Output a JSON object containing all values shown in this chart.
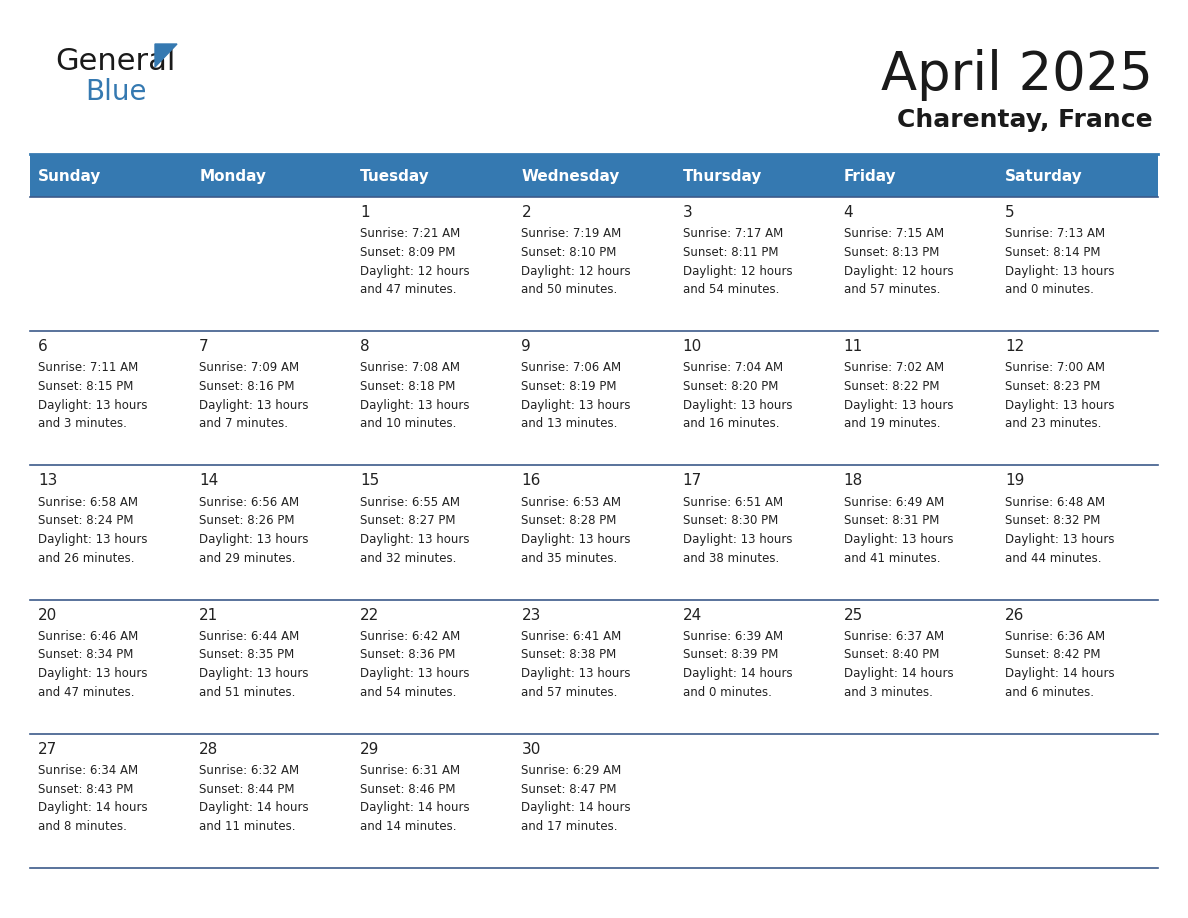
{
  "title": "April 2025",
  "subtitle": "Charentay, France",
  "days_of_week": [
    "Sunday",
    "Monday",
    "Tuesday",
    "Wednesday",
    "Thursday",
    "Friday",
    "Saturday"
  ],
  "header_bg": "#3579B1",
  "header_text_color": "#FFFFFF",
  "row_bg": "#FFFFFF",
  "border_color": "#3C5A8A",
  "text_color": "#222222",
  "calendar_data": [
    [
      null,
      null,
      {
        "day": 1,
        "sunrise": "7:21 AM",
        "sunset": "8:09 PM",
        "daylight": "12 hours and 47 minutes"
      },
      {
        "day": 2,
        "sunrise": "7:19 AM",
        "sunset": "8:10 PM",
        "daylight": "12 hours and 50 minutes"
      },
      {
        "day": 3,
        "sunrise": "7:17 AM",
        "sunset": "8:11 PM",
        "daylight": "12 hours and 54 minutes"
      },
      {
        "day": 4,
        "sunrise": "7:15 AM",
        "sunset": "8:13 PM",
        "daylight": "12 hours and 57 minutes"
      },
      {
        "day": 5,
        "sunrise": "7:13 AM",
        "sunset": "8:14 PM",
        "daylight": "13 hours and 0 minutes"
      }
    ],
    [
      {
        "day": 6,
        "sunrise": "7:11 AM",
        "sunset": "8:15 PM",
        "daylight": "13 hours and 3 minutes"
      },
      {
        "day": 7,
        "sunrise": "7:09 AM",
        "sunset": "8:16 PM",
        "daylight": "13 hours and 7 minutes"
      },
      {
        "day": 8,
        "sunrise": "7:08 AM",
        "sunset": "8:18 PM",
        "daylight": "13 hours and 10 minutes"
      },
      {
        "day": 9,
        "sunrise": "7:06 AM",
        "sunset": "8:19 PM",
        "daylight": "13 hours and 13 minutes"
      },
      {
        "day": 10,
        "sunrise": "7:04 AM",
        "sunset": "8:20 PM",
        "daylight": "13 hours and 16 minutes"
      },
      {
        "day": 11,
        "sunrise": "7:02 AM",
        "sunset": "8:22 PM",
        "daylight": "13 hours and 19 minutes"
      },
      {
        "day": 12,
        "sunrise": "7:00 AM",
        "sunset": "8:23 PM",
        "daylight": "13 hours and 23 minutes"
      }
    ],
    [
      {
        "day": 13,
        "sunrise": "6:58 AM",
        "sunset": "8:24 PM",
        "daylight": "13 hours and 26 minutes"
      },
      {
        "day": 14,
        "sunrise": "6:56 AM",
        "sunset": "8:26 PM",
        "daylight": "13 hours and 29 minutes"
      },
      {
        "day": 15,
        "sunrise": "6:55 AM",
        "sunset": "8:27 PM",
        "daylight": "13 hours and 32 minutes"
      },
      {
        "day": 16,
        "sunrise": "6:53 AM",
        "sunset": "8:28 PM",
        "daylight": "13 hours and 35 minutes"
      },
      {
        "day": 17,
        "sunrise": "6:51 AM",
        "sunset": "8:30 PM",
        "daylight": "13 hours and 38 minutes"
      },
      {
        "day": 18,
        "sunrise": "6:49 AM",
        "sunset": "8:31 PM",
        "daylight": "13 hours and 41 minutes"
      },
      {
        "day": 19,
        "sunrise": "6:48 AM",
        "sunset": "8:32 PM",
        "daylight": "13 hours and 44 minutes"
      }
    ],
    [
      {
        "day": 20,
        "sunrise": "6:46 AM",
        "sunset": "8:34 PM",
        "daylight": "13 hours and 47 minutes"
      },
      {
        "day": 21,
        "sunrise": "6:44 AM",
        "sunset": "8:35 PM",
        "daylight": "13 hours and 51 minutes"
      },
      {
        "day": 22,
        "sunrise": "6:42 AM",
        "sunset": "8:36 PM",
        "daylight": "13 hours and 54 minutes"
      },
      {
        "day": 23,
        "sunrise": "6:41 AM",
        "sunset": "8:38 PM",
        "daylight": "13 hours and 57 minutes"
      },
      {
        "day": 24,
        "sunrise": "6:39 AM",
        "sunset": "8:39 PM",
        "daylight": "14 hours and 0 minutes"
      },
      {
        "day": 25,
        "sunrise": "6:37 AM",
        "sunset": "8:40 PM",
        "daylight": "14 hours and 3 minutes"
      },
      {
        "day": 26,
        "sunrise": "6:36 AM",
        "sunset": "8:42 PM",
        "daylight": "14 hours and 6 minutes"
      }
    ],
    [
      {
        "day": 27,
        "sunrise": "6:34 AM",
        "sunset": "8:43 PM",
        "daylight": "14 hours and 8 minutes"
      },
      {
        "day": 28,
        "sunrise": "6:32 AM",
        "sunset": "8:44 PM",
        "daylight": "14 hours and 11 minutes"
      },
      {
        "day": 29,
        "sunrise": "6:31 AM",
        "sunset": "8:46 PM",
        "daylight": "14 hours and 14 minutes"
      },
      {
        "day": 30,
        "sunrise": "6:29 AM",
        "sunset": "8:47 PM",
        "daylight": "14 hours and 17 minutes"
      },
      null,
      null,
      null
    ]
  ]
}
